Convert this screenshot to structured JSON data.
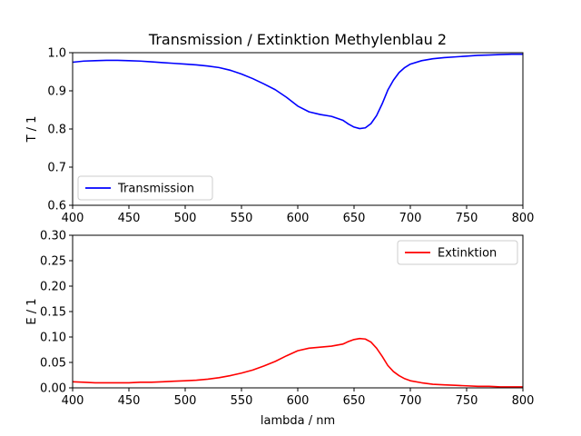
{
  "figure": {
    "title": "Transmission / Extinktion Methylenblau 2"
  },
  "chart_data": [
    {
      "type": "line",
      "title": "Transmission / Extinktion Methylenblau 2",
      "xlabel": "",
      "ylabel": "T / 1",
      "xlim": [
        400,
        800
      ],
      "ylim": [
        0.6,
        1.0
      ],
      "xticks": [
        "400",
        "450",
        "500",
        "550",
        "600",
        "650",
        "700",
        "750",
        "800"
      ],
      "yticks": [
        "0.6",
        "0.7",
        "0.8",
        "0.9",
        "1.0"
      ],
      "grid": false,
      "legend": "lower-left",
      "series": [
        {
          "name": "Transmission",
          "color": "#0000ff",
          "x": [
            400,
            410,
            420,
            430,
            440,
            450,
            460,
            470,
            480,
            490,
            500,
            510,
            520,
            530,
            540,
            550,
            560,
            570,
            580,
            590,
            600,
            610,
            620,
            630,
            640,
            645,
            650,
            655,
            660,
            665,
            670,
            675,
            680,
            685,
            690,
            695,
            700,
            710,
            720,
            730,
            740,
            750,
            760,
            770,
            780,
            790,
            800
          ],
          "y": [
            0.975,
            0.978,
            0.979,
            0.98,
            0.98,
            0.979,
            0.978,
            0.976,
            0.974,
            0.972,
            0.97,
            0.968,
            0.965,
            0.961,
            0.954,
            0.944,
            0.932,
            0.918,
            0.903,
            0.883,
            0.86,
            0.845,
            0.838,
            0.833,
            0.823,
            0.813,
            0.805,
            0.801,
            0.803,
            0.814,
            0.835,
            0.866,
            0.902,
            0.928,
            0.948,
            0.961,
            0.97,
            0.979,
            0.984,
            0.987,
            0.989,
            0.991,
            0.993,
            0.994,
            0.995,
            0.996,
            0.996
          ]
        }
      ]
    },
    {
      "type": "line",
      "title": "",
      "xlabel": "lambda / nm",
      "ylabel": "E / 1",
      "xlim": [
        400,
        800
      ],
      "ylim": [
        0.0,
        0.3
      ],
      "xticks": [
        "400",
        "450",
        "500",
        "550",
        "600",
        "650",
        "700",
        "750",
        "800"
      ],
      "yticks": [
        "0.00",
        "0.05",
        "0.10",
        "0.15",
        "0.20",
        "0.25",
        "0.30"
      ],
      "grid": false,
      "legend": "upper-right",
      "series": [
        {
          "name": "Extinktion",
          "color": "#ff0000",
          "x": [
            400,
            410,
            420,
            430,
            440,
            450,
            460,
            470,
            480,
            490,
            500,
            510,
            520,
            530,
            540,
            550,
            560,
            570,
            580,
            590,
            600,
            610,
            620,
            630,
            640,
            645,
            650,
            655,
            660,
            665,
            670,
            675,
            680,
            685,
            690,
            695,
            700,
            710,
            720,
            730,
            740,
            750,
            760,
            770,
            780,
            790,
            800
          ],
          "y": [
            0.012,
            0.011,
            0.01,
            0.01,
            0.01,
            0.01,
            0.011,
            0.011,
            0.012,
            0.013,
            0.014,
            0.015,
            0.017,
            0.02,
            0.024,
            0.029,
            0.035,
            0.043,
            0.052,
            0.063,
            0.073,
            0.078,
            0.08,
            0.082,
            0.086,
            0.091,
            0.095,
            0.097,
            0.096,
            0.09,
            0.078,
            0.062,
            0.044,
            0.032,
            0.024,
            0.018,
            0.014,
            0.01,
            0.007,
            0.006,
            0.005,
            0.004,
            0.003,
            0.003,
            0.002,
            0.002,
            0.002
          ]
        }
      ]
    }
  ]
}
